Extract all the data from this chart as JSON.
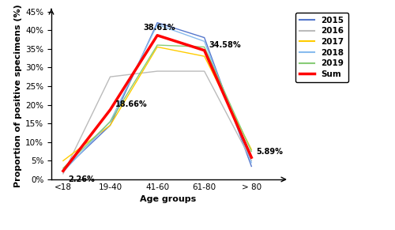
{
  "categories": [
    "<18",
    "19-40",
    "41-60",
    "61-80",
    "> 80"
  ],
  "series": {
    "2015": [
      2.5,
      14.5,
      42.0,
      38.0,
      3.5
    ],
    "2016": [
      1.5,
      27.5,
      29.0,
      29.0,
      5.0
    ],
    "2017": [
      5.0,
      14.5,
      35.5,
      33.0,
      8.0
    ],
    "2018": [
      2.0,
      15.5,
      41.5,
      37.0,
      4.5
    ],
    "2019": [
      3.0,
      15.5,
      36.0,
      35.5,
      7.5
    ],
    "Sum": [
      2.26,
      18.66,
      38.61,
      34.58,
      5.89
    ]
  },
  "colors": {
    "2015": "#5577CC",
    "2016": "#BBBBBB",
    "2017": "#FFCC00",
    "2018": "#88BBEE",
    "2019": "#88CC77",
    "Sum": "#FF0000"
  },
  "linewidths": {
    "2015": 1.0,
    "2016": 1.0,
    "2017": 1.0,
    "2018": 1.0,
    "2019": 1.0,
    "Sum": 2.5
  },
  "annotations": {
    "<18": "2.26%",
    "19-40": "18.66%",
    "41-60": "38.61%",
    "61-80": "34.58%",
    "> 80": "5.89%"
  },
  "xlabel": "Age groups",
  "ylabel": "Proportion of positive specimens (%)",
  "ylim": [
    0,
    45
  ],
  "yticks": [
    0,
    5,
    10,
    15,
    20,
    25,
    30,
    35,
    40,
    45
  ],
  "background_color": "#FFFFFF",
  "axis_fontsize": 8,
  "tick_fontsize": 7.5,
  "legend_fontsize": 7.5,
  "annot_fontsize": 7.0
}
